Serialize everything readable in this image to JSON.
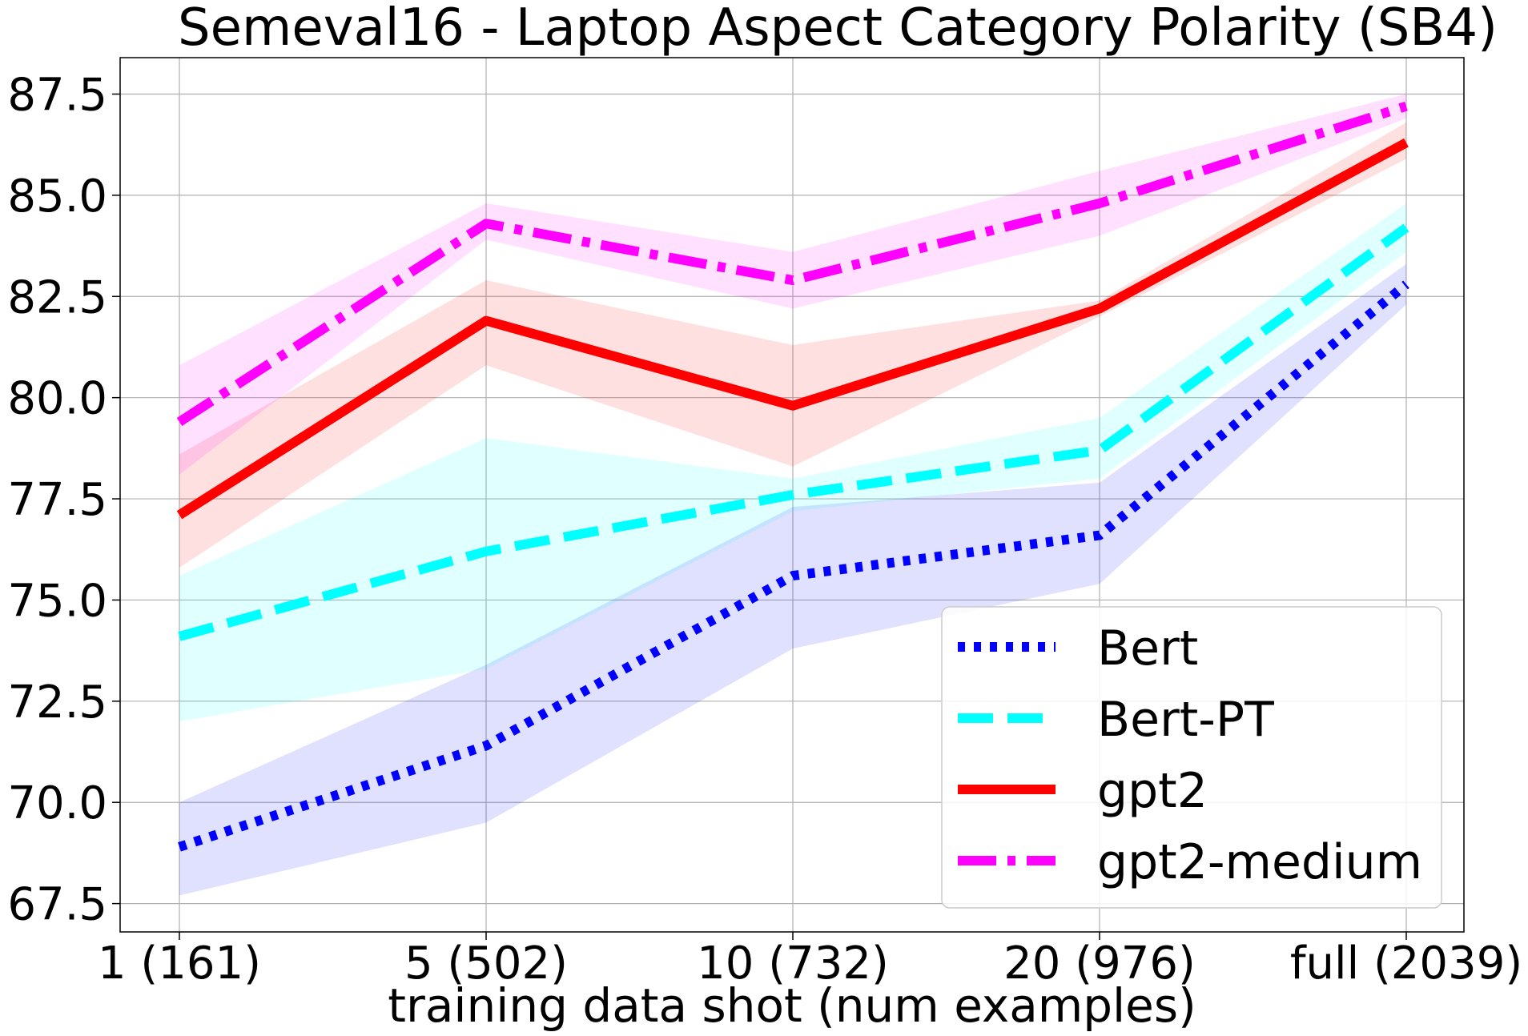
{
  "chart_data": {
    "type": "line",
    "title": "Semeval16 - Laptop Aspect Category Polarity (SB4)",
    "xlabel": "training data shot (num examples)",
    "ylabel": "",
    "categories": [
      "1 (161)",
      "5 (502)",
      "10 (732)",
      "20 (976)",
      "full (2039)"
    ],
    "ylim": [
      66.8,
      88.4
    ],
    "yticks": [
      "67.5",
      "70.0",
      "72.5",
      "75.0",
      "77.5",
      "80.0",
      "82.5",
      "85.0",
      "87.5"
    ],
    "grid": true,
    "legend_position": "bottom-right",
    "series": [
      {
        "name": "Bert",
        "values": [
          68.9,
          71.4,
          75.6,
          76.6,
          82.8
        ],
        "lower": [
          67.7,
          69.5,
          73.8,
          75.4,
          82.3
        ],
        "upper": [
          70.0,
          73.4,
          77.3,
          77.9,
          83.3
        ],
        "color": "#0000ff",
        "style": "dotted"
      },
      {
        "name": "Bert-PT",
        "values": [
          74.1,
          76.2,
          77.6,
          78.7,
          84.2
        ],
        "lower": [
          72.0,
          73.3,
          77.2,
          78.0,
          83.6
        ],
        "upper": [
          75.6,
          79.0,
          78.0,
          79.5,
          84.8
        ],
        "color": "#00ffff",
        "style": "dashed"
      },
      {
        "name": "gpt2",
        "values": [
          77.1,
          81.9,
          79.8,
          82.2,
          86.3
        ],
        "lower": [
          75.8,
          80.8,
          78.3,
          82.0,
          85.9
        ],
        "upper": [
          78.6,
          82.9,
          81.3,
          82.4,
          86.8
        ],
        "color": "#ff0000",
        "style": "solid"
      },
      {
        "name": "gpt2-medium",
        "values": [
          79.4,
          84.3,
          82.9,
          84.8,
          87.2
        ],
        "lower": [
          78.1,
          83.9,
          82.2,
          84.0,
          86.9
        ],
        "upper": [
          80.8,
          84.8,
          83.6,
          85.6,
          87.5
        ],
        "color": "#ff00ff",
        "style": "dashdot"
      }
    ]
  }
}
